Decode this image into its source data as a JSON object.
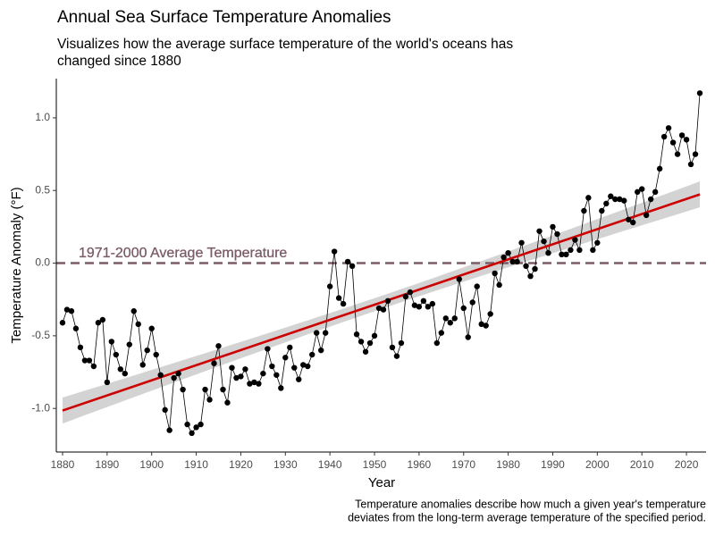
{
  "chart_data": {
    "type": "line",
    "title": "Annual Sea Surface Temperature Anomalies",
    "subtitle": [
      "Visualizes how the average surface temperature of the world's oceans has",
      "changed since 1880"
    ],
    "xlabel": "Year",
    "ylabel": "Temperature Anomaly (°F)",
    "caption": [
      "Temperature anomalies describe how much a given year's temperature",
      "deviates from the long-term average temperature of the specified period."
    ],
    "x": [
      1880,
      1881,
      1882,
      1883,
      1884,
      1885,
      1886,
      1887,
      1888,
      1889,
      1890,
      1891,
      1892,
      1893,
      1894,
      1895,
      1896,
      1897,
      1898,
      1899,
      1900,
      1901,
      1902,
      1903,
      1904,
      1905,
      1906,
      1907,
      1908,
      1909,
      1910,
      1911,
      1912,
      1913,
      1914,
      1915,
      1916,
      1917,
      1918,
      1919,
      1920,
      1921,
      1922,
      1923,
      1924,
      1925,
      1926,
      1927,
      1928,
      1929,
      1930,
      1931,
      1932,
      1933,
      1934,
      1935,
      1936,
      1937,
      1938,
      1939,
      1940,
      1941,
      1942,
      1943,
      1944,
      1945,
      1946,
      1947,
      1948,
      1949,
      1950,
      1951,
      1952,
      1953,
      1954,
      1955,
      1956,
      1957,
      1958,
      1959,
      1960,
      1961,
      1962,
      1963,
      1964,
      1965,
      1966,
      1967,
      1968,
      1969,
      1970,
      1971,
      1972,
      1973,
      1974,
      1975,
      1976,
      1977,
      1978,
      1979,
      1980,
      1981,
      1982,
      1983,
      1984,
      1985,
      1986,
      1987,
      1988,
      1989,
      1990,
      1991,
      1992,
      1993,
      1994,
      1995,
      1996,
      1997,
      1998,
      1999,
      2000,
      2001,
      2002,
      2003,
      2004,
      2005,
      2006,
      2007,
      2008,
      2009,
      2010,
      2011,
      2012,
      2013,
      2014,
      2015,
      2016,
      2017,
      2018,
      2019,
      2020,
      2021,
      2022,
      2023
    ],
    "values": [
      -0.41,
      -0.32,
      -0.33,
      -0.45,
      -0.58,
      -0.67,
      -0.67,
      -0.71,
      -0.41,
      -0.39,
      -0.82,
      -0.54,
      -0.63,
      -0.73,
      -0.76,
      -0.56,
      -0.33,
      -0.42,
      -0.7,
      -0.6,
      -0.45,
      -0.63,
      -0.77,
      -1.01,
      -1.15,
      -0.79,
      -0.76,
      -0.87,
      -1.11,
      -1.17,
      -1.13,
      -1.11,
      -0.87,
      -0.94,
      -0.69,
      -0.57,
      -0.87,
      -0.96,
      -0.72,
      -0.79,
      -0.78,
      -0.73,
      -0.83,
      -0.82,
      -0.83,
      -0.76,
      -0.59,
      -0.71,
      -0.77,
      -0.86,
      -0.65,
      -0.58,
      -0.72,
      -0.8,
      -0.7,
      -0.71,
      -0.63,
      -0.48,
      -0.6,
      -0.48,
      -0.16,
      0.08,
      -0.24,
      -0.28,
      0.01,
      -0.02,
      -0.49,
      -0.54,
      -0.61,
      -0.55,
      -0.5,
      -0.31,
      -0.32,
      -0.26,
      -0.58,
      -0.64,
      -0.55,
      -0.23,
      -0.2,
      -0.29,
      -0.3,
      -0.26,
      -0.3,
      -0.28,
      -0.55,
      -0.48,
      -0.38,
      -0.41,
      -0.38,
      -0.11,
      -0.31,
      -0.51,
      -0.27,
      -0.16,
      -0.42,
      -0.43,
      -0.35,
      -0.07,
      -0.15,
      0.04,
      0.07,
      0.01,
      0.01,
      0.14,
      -0.02,
      -0.09,
      -0.04,
      0.22,
      0.15,
      0.07,
      0.25,
      0.2,
      0.06,
      0.06,
      0.09,
      0.16,
      0.09,
      0.36,
      0.45,
      0.09,
      0.14,
      0.36,
      0.41,
      0.46,
      0.44,
      0.44,
      0.43,
      0.3,
      0.28,
      0.49,
      0.51,
      0.33,
      0.44,
      0.49,
      0.65,
      0.87,
      0.93,
      0.83,
      0.75,
      0.88,
      0.85,
      0.68,
      0.75,
      1.17
    ],
    "color": "#000000",
    "trend_color": "#cc0000",
    "band_color": "#d3d3d3",
    "reference": {
      "value": 0,
      "label": "1971-2000 Average Temperature",
      "color": "#7b5c68"
    },
    "xlim": [
      1878.6,
      2024.4
    ],
    "ylim": [
      -1.3,
      1.27
    ],
    "xticks": [
      1880,
      1890,
      1900,
      1910,
      1920,
      1930,
      1940,
      1950,
      1960,
      1970,
      1980,
      1990,
      2000,
      2010,
      2020
    ],
    "yticks": [
      {
        "value": -1,
        "label": "-1.0"
      },
      {
        "value": -0.5,
        "label": "-0.5"
      },
      {
        "value": 0,
        "label": "0.0"
      },
      {
        "value": 0.5,
        "label": "0.5"
      },
      {
        "value": 1,
        "label": "1.0"
      }
    ]
  }
}
